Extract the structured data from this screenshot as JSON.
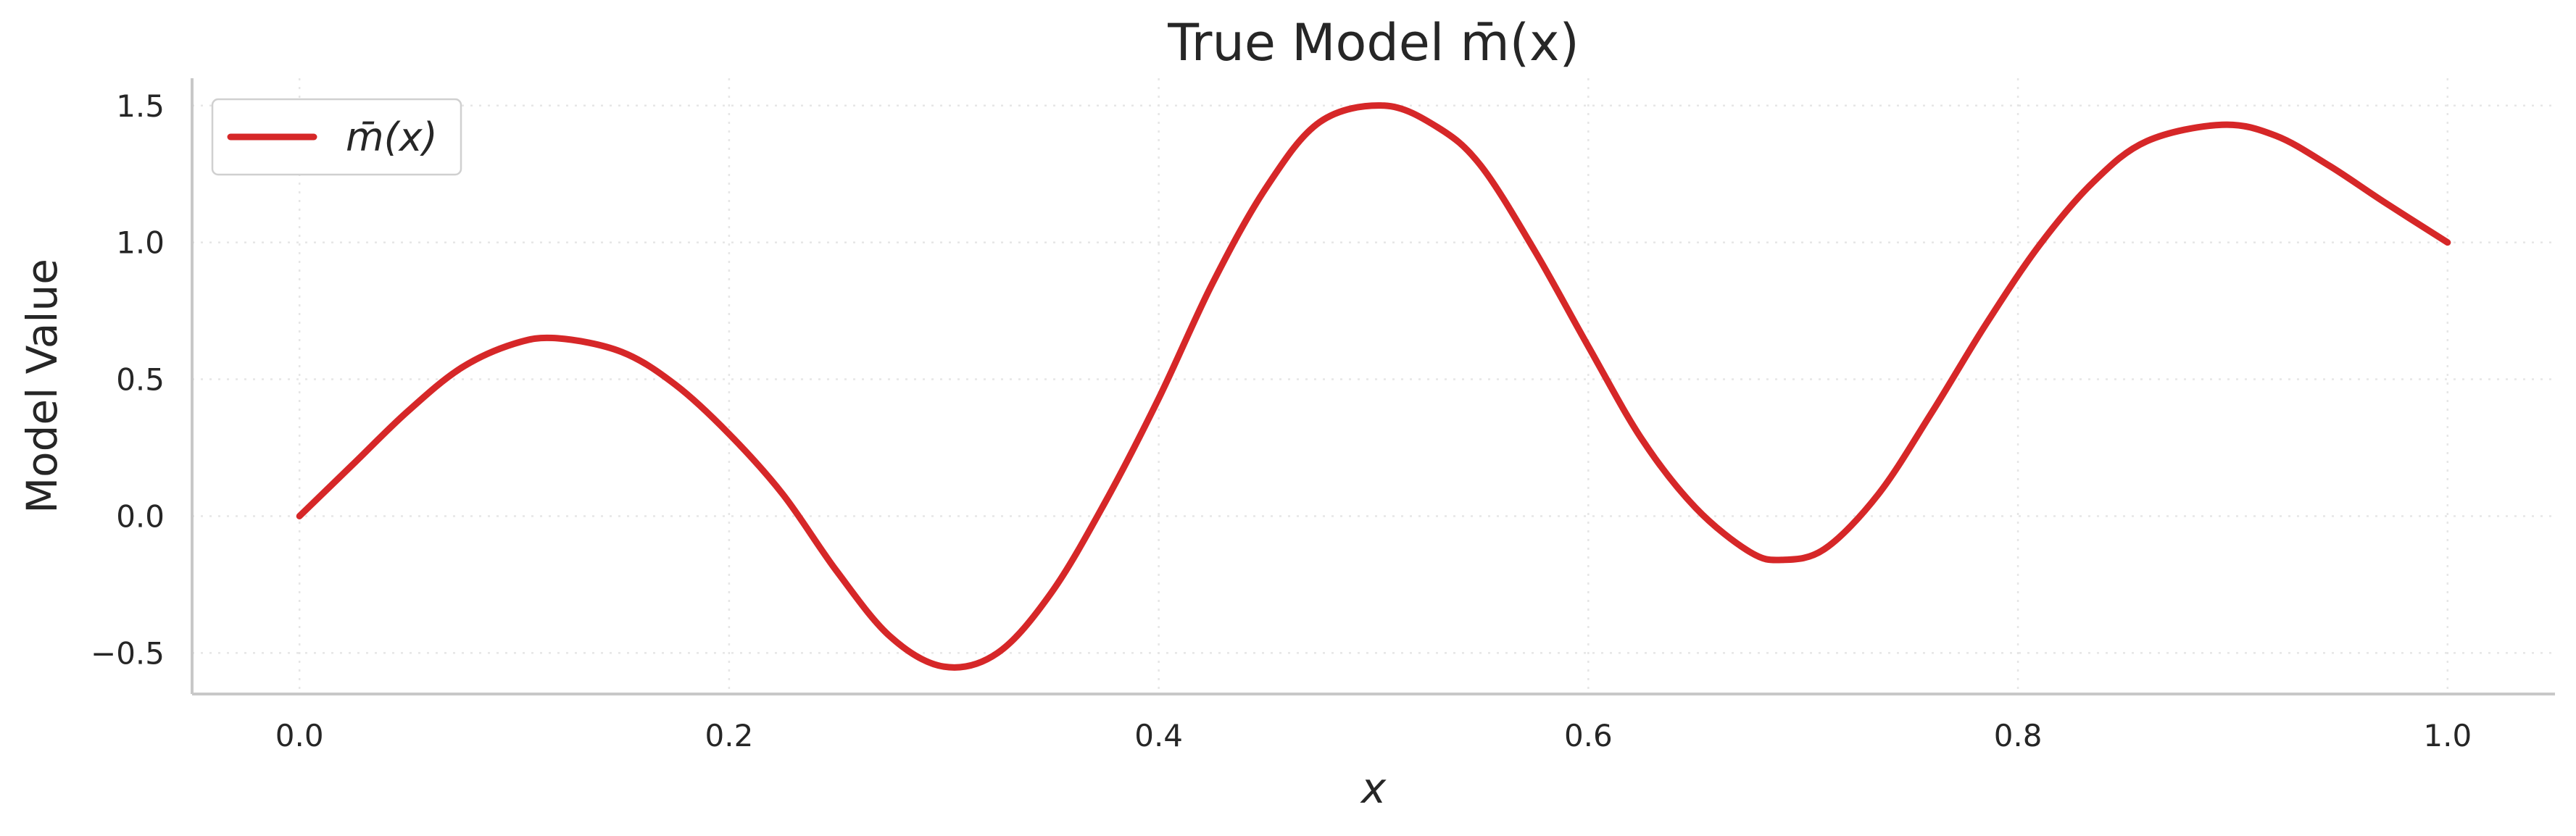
{
  "chart_data": {
    "type": "line",
    "title": "True Model m̄(x)",
    "xlabel": "x",
    "ylabel": "Model Value",
    "xlim": [
      -0.05,
      1.05
    ],
    "ylim": [
      -0.65,
      1.6
    ],
    "xticks": [
      0.0,
      0.2,
      0.4,
      0.6,
      0.8,
      1.0
    ],
    "xtick_labels": [
      "0.0",
      "0.2",
      "0.4",
      "0.6",
      "0.8",
      "1.0"
    ],
    "yticks": [
      -0.5,
      0.0,
      0.5,
      1.0,
      1.5
    ],
    "ytick_labels": [
      "−0.5",
      "0.0",
      "0.5",
      "1.0",
      "1.5"
    ],
    "grid": true,
    "legend_position": "top-left",
    "colors": {
      "line": "#d62728",
      "grid": "#e6e6e6",
      "spine": "#c8c8c8",
      "text": "#262626"
    },
    "series": [
      {
        "name": "m̄(x)",
        "x": [
          0.0,
          0.025,
          0.05,
          0.075,
          0.1,
          0.12,
          0.15,
          0.175,
          0.2,
          0.225,
          0.25,
          0.275,
          0.3,
          0.325,
          0.35,
          0.375,
          0.4,
          0.425,
          0.45,
          0.475,
          0.505,
          0.53,
          0.55,
          0.575,
          0.6,
          0.625,
          0.65,
          0.675,
          0.69,
          0.71,
          0.735,
          0.76,
          0.785,
          0.81,
          0.835,
          0.86,
          0.895,
          0.92,
          0.945,
          0.97,
          1.0
        ],
        "y": [
          0.0,
          0.19,
          0.38,
          0.54,
          0.63,
          0.65,
          0.6,
          0.48,
          0.3,
          0.08,
          -0.2,
          -0.44,
          -0.55,
          -0.5,
          -0.28,
          0.05,
          0.43,
          0.85,
          1.2,
          1.44,
          1.5,
          1.42,
          1.28,
          0.97,
          0.62,
          0.28,
          0.03,
          -0.13,
          -0.16,
          -0.12,
          0.08,
          0.38,
          0.7,
          0.99,
          1.22,
          1.37,
          1.43,
          1.39,
          1.28,
          1.15,
          1.0
        ]
      }
    ]
  }
}
